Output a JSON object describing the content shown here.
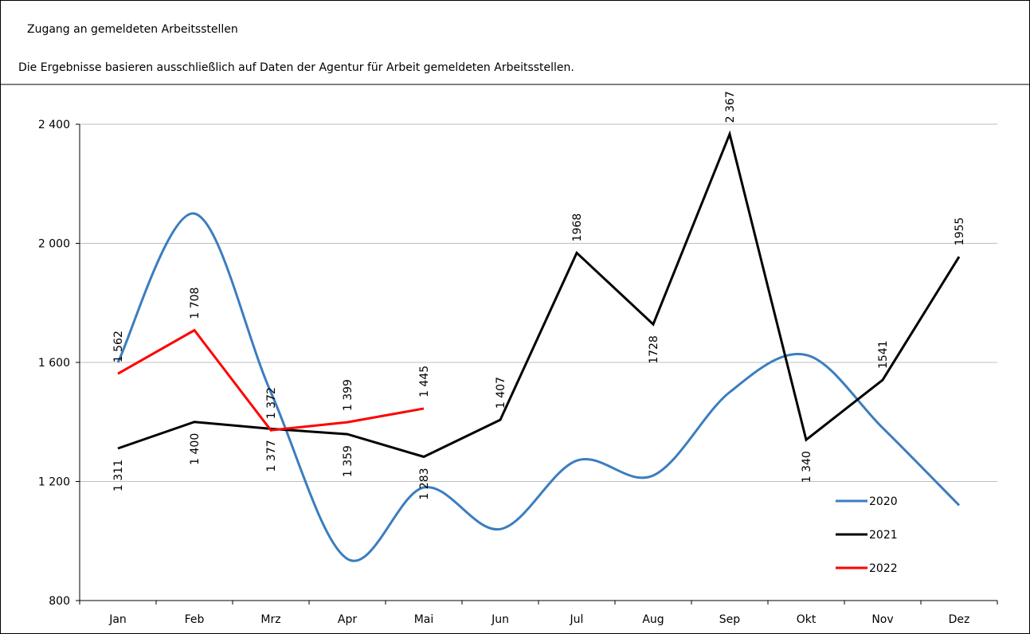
{
  "header": {
    "title": "Zugang an gemeldeten Arbeitsstellen",
    "subtitle": "Die Ergebnisse basieren ausschließlich auf Daten der Agentur für Arbeit gemeldeten Arbeitsstellen."
  },
  "chart_data": {
    "type": "line",
    "categories": [
      "Jan",
      "Feb",
      "Mrz",
      "Apr",
      "Mai",
      "Jun",
      "Jul",
      "Aug",
      "Sep",
      "Okt",
      "Nov",
      "Dez"
    ],
    "ylim": [
      800,
      2400
    ],
    "yticks": [
      800,
      {
        "value": 1200,
        "label": "1 200"
      },
      {
        "value": 1600,
        "label": "1 600"
      },
      {
        "value": 2000,
        "label": "2 000"
      },
      {
        "value": 2400,
        "label": "2 400"
      }
    ],
    "grid": true,
    "series": [
      {
        "name": "2020",
        "color": "#3b7dbf",
        "smooth": true,
        "values": [
          1600,
          2100,
          1500,
          940,
          1180,
          1040,
          1270,
          1220,
          1500,
          1625,
          1380,
          1120
        ]
      },
      {
        "name": "2021",
        "color": "#000000",
        "smooth": false,
        "values": [
          1311,
          1400,
          1377,
          1359,
          1283,
          1407,
          1968,
          1728,
          2367,
          1340,
          1541,
          1955
        ],
        "value_labels": [
          "1 311",
          "1 400",
          "1 377",
          "1 359",
          "1 283",
          "1 407",
          "1968",
          "1728",
          "2 367",
          "1 340",
          "1541",
          "1955"
        ]
      },
      {
        "name": "2022",
        "color": "#ff0000",
        "smooth": false,
        "values": [
          1562,
          1708,
          1372,
          1399,
          1445,
          null,
          null,
          null,
          null,
          null,
          null,
          null
        ],
        "value_labels": [
          "1 562",
          "1 708",
          "1 372",
          "1 399",
          "1 445",
          null,
          null,
          null,
          null,
          null,
          null,
          null
        ]
      }
    ]
  }
}
